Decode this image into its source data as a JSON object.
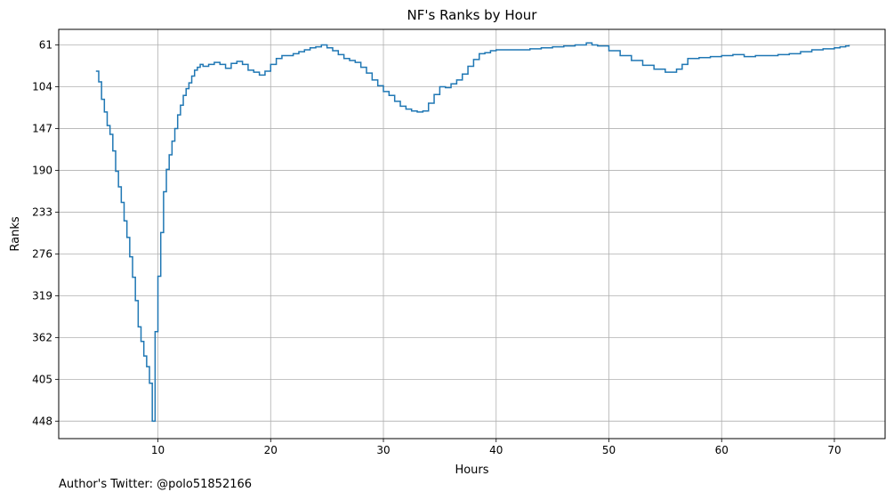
{
  "chart_data": {
    "type": "line",
    "drawstyle": "steps",
    "title": "NF's Ranks by Hour",
    "xlabel": "Hours",
    "ylabel": "Ranks",
    "xlim": [
      1.2,
      74.5
    ],
    "ylim": [
      466,
      45
    ],
    "y_inverted": true,
    "grid": true,
    "line_color": "#1f77b4",
    "x_ticks": [
      10,
      20,
      30,
      40,
      50,
      60,
      70
    ],
    "y_ticks": [
      61,
      104,
      147,
      190,
      233,
      276,
      319,
      362,
      405,
      448
    ],
    "series": [
      {
        "x": [
          4.5,
          4.75,
          5.0,
          5.25,
          5.5,
          5.75,
          6.0,
          6.25,
          6.5,
          6.75,
          7.0,
          7.25,
          7.5,
          7.75,
          8.0,
          8.25,
          8.5,
          8.75,
          9.0,
          9.25,
          9.5,
          9.75,
          10.0,
          10.25,
          10.5,
          10.75,
          11.0,
          11.25,
          11.5,
          11.75,
          12.0,
          12.25,
          12.5,
          12.75,
          13.0,
          13.25,
          13.5,
          13.75,
          14.0,
          14.5,
          15.0,
          15.5,
          16.0,
          16.5,
          17.0,
          17.5,
          18.0,
          18.5,
          19.0,
          19.5,
          20.0,
          20.5,
          21.0,
          21.5,
          22.0,
          22.5,
          23.0,
          23.5,
          24.0,
          24.5,
          25.0,
          25.5,
          26.0,
          26.5,
          27.0,
          27.5,
          28.0,
          28.5,
          29.0,
          29.5,
          30.0,
          30.5,
          31.0,
          31.5,
          32.0,
          32.5,
          33.0,
          33.5,
          34.0,
          34.5,
          35.0,
          35.5,
          36.0,
          36.5,
          37.0,
          37.5,
          38.0,
          38.5,
          39.0,
          39.5,
          40.0,
          41.0,
          42.0,
          43.0,
          44.0,
          45.0,
          46.0,
          47.0,
          48.0,
          48.5,
          49.0,
          50.0,
          51.0,
          52.0,
          53.0,
          54.0,
          55.0,
          56.0,
          56.5,
          57.0,
          58.0,
          59.0,
          60.0,
          61.0,
          62.0,
          63.0,
          64.0,
          65.0,
          66.0,
          67.0,
          68.0,
          69.0,
          70.0,
          70.5,
          71.0,
          71.3
        ],
        "y": [
          88,
          99,
          117,
          130,
          144,
          153,
          170,
          191,
          207,
          223,
          242,
          259,
          279,
          300,
          324,
          351,
          366,
          381,
          392,
          409,
          448,
          356,
          299,
          254,
          212,
          189,
          174,
          160,
          147,
          133,
          123,
          113,
          106,
          100,
          93,
          87,
          84,
          81,
          83,
          81,
          79,
          81,
          85,
          80,
          78,
          81,
          87,
          89,
          92,
          88,
          81,
          75,
          72,
          72,
          70,
          68,
          66,
          64,
          63,
          61,
          64,
          67,
          71,
          75,
          77,
          79,
          84,
          90,
          97,
          103,
          109,
          113,
          119,
          124,
          127,
          129,
          130,
          129,
          121,
          112,
          104,
          105,
          101,
          97,
          91,
          83,
          76,
          70,
          69,
          67,
          66,
          66,
          66,
          65,
          64,
          63,
          62,
          61,
          59,
          61,
          62,
          67,
          72,
          77,
          82,
          86,
          89,
          86,
          81,
          75,
          74,
          73,
          72,
          71,
          73,
          72,
          72,
          71,
          70,
          68,
          66,
          65,
          64,
          63,
          62,
          61
        ]
      }
    ]
  },
  "footer_text": "Author's Twitter: @polo51852166"
}
